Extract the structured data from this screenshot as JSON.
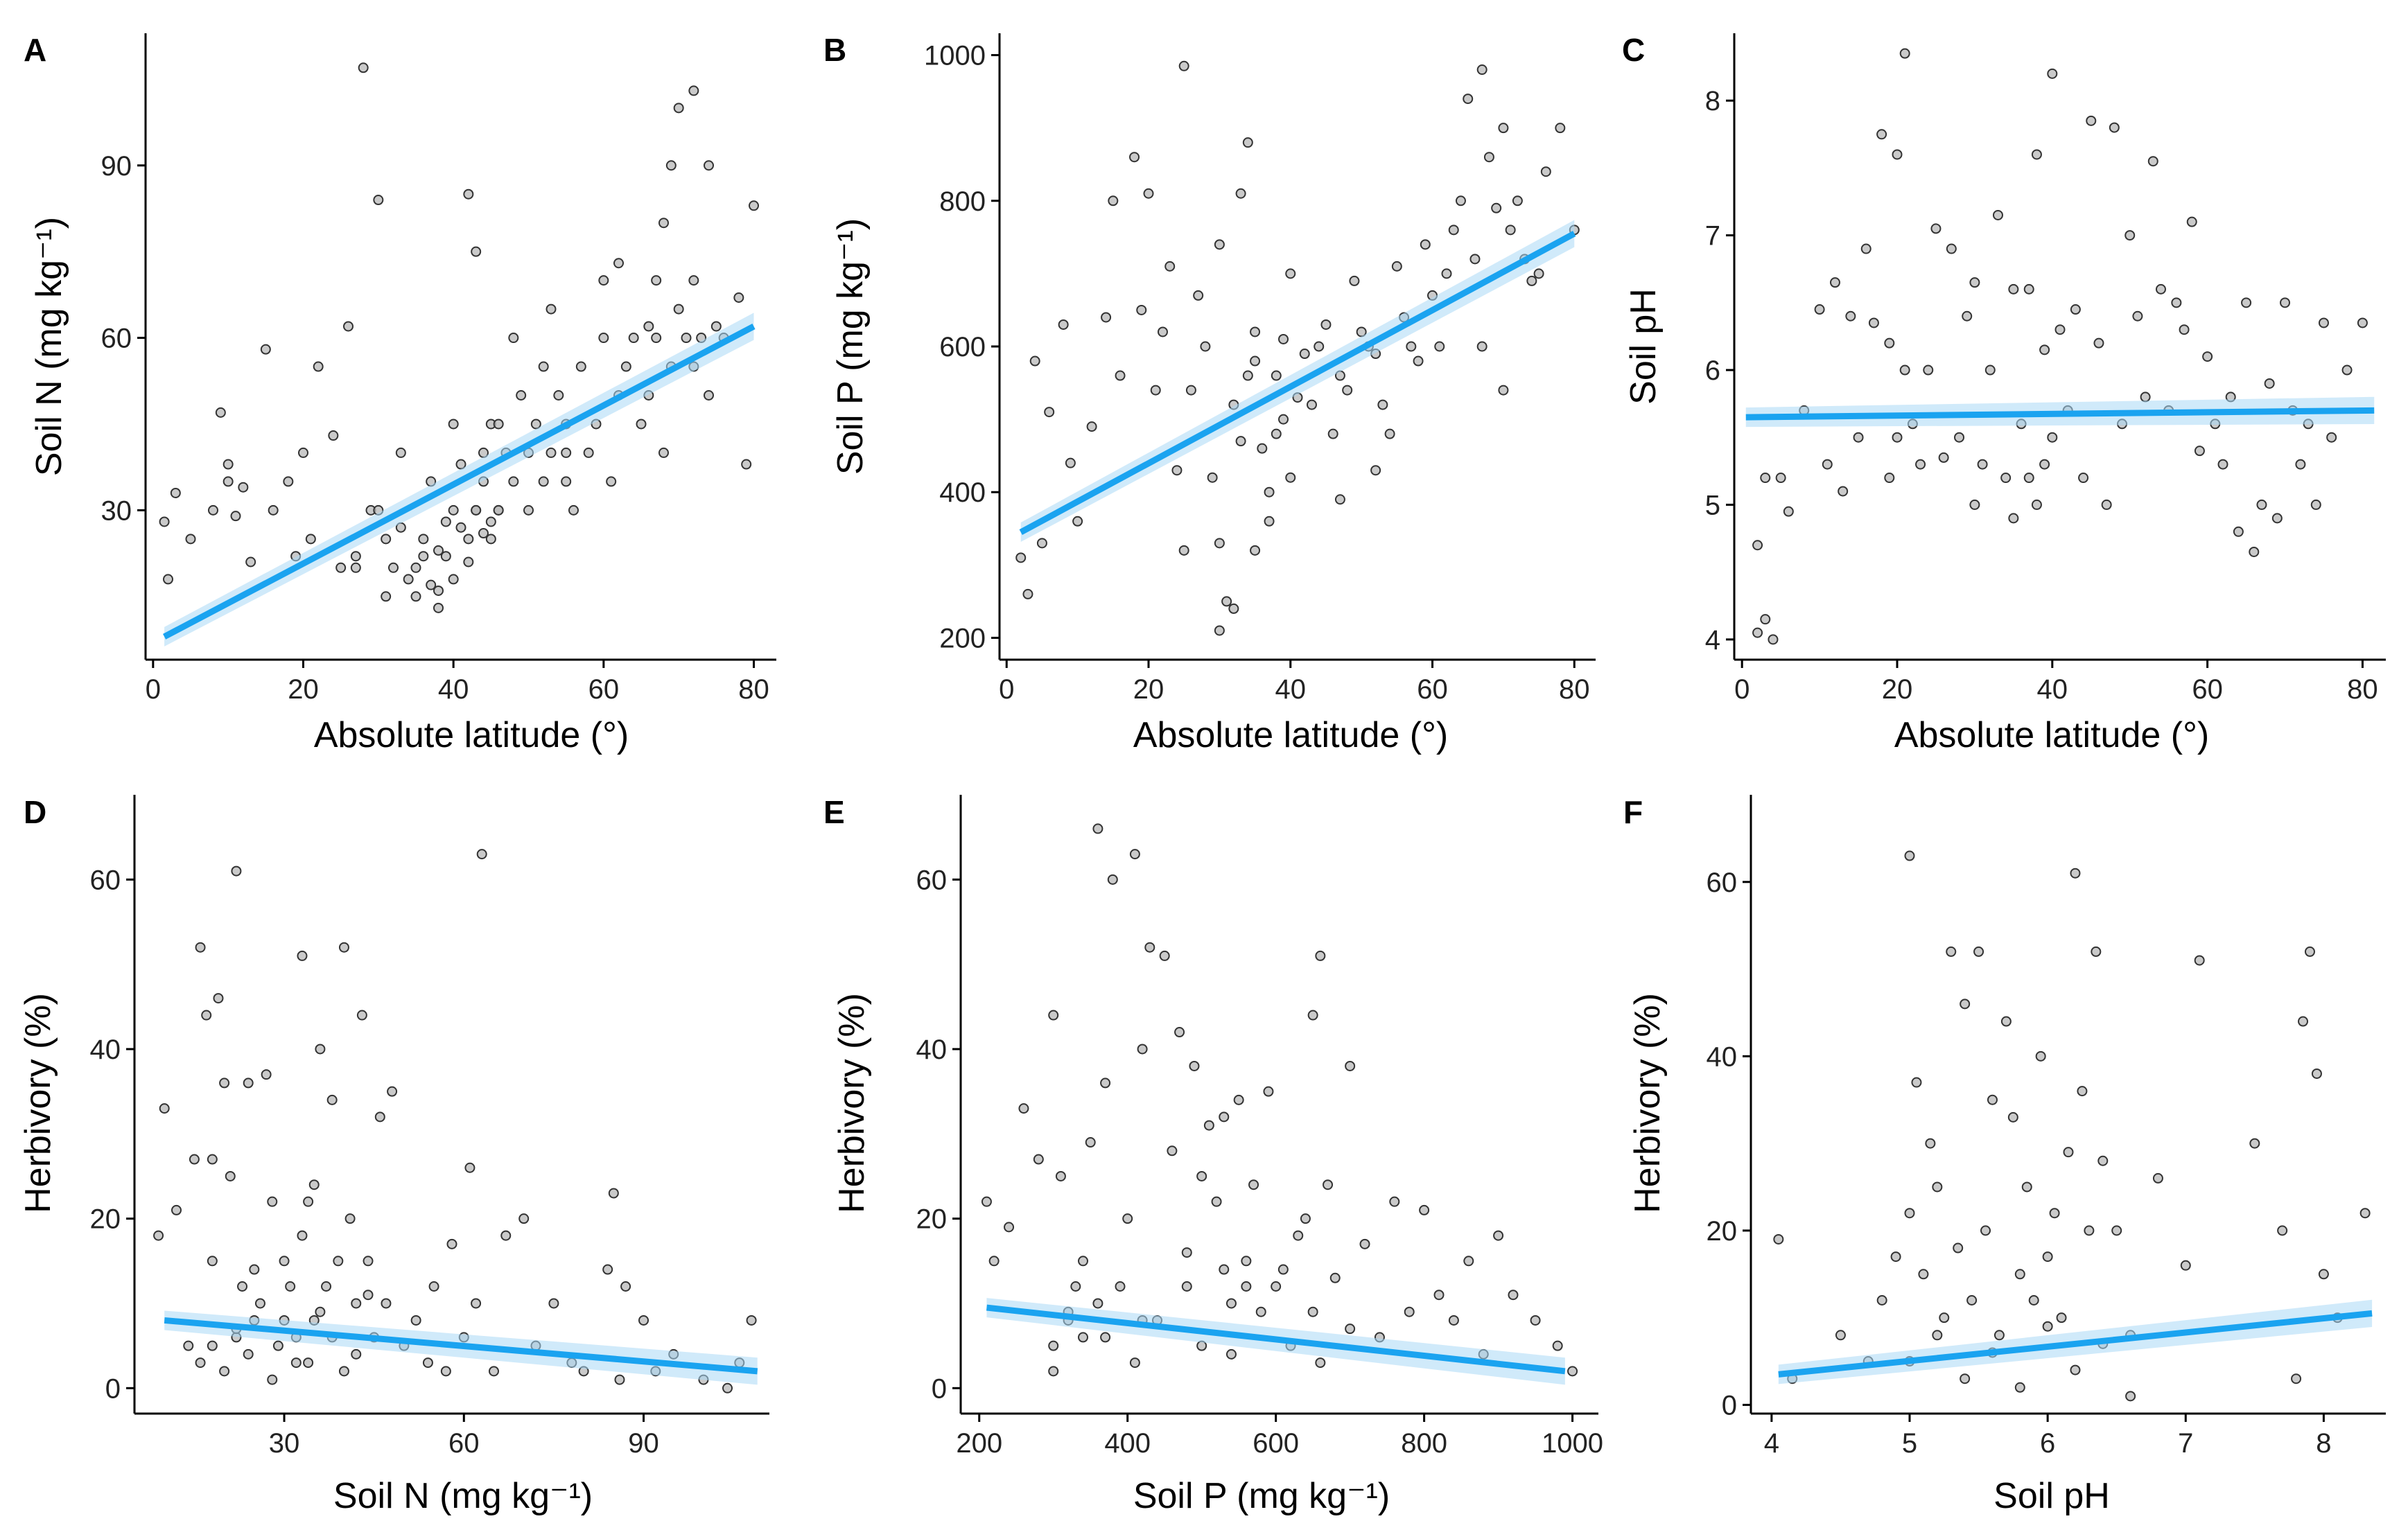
{
  "figure": {
    "panels": [
      {
        "letter": "A",
        "xlabel": "Absolute latitude (°)",
        "ylabel": "Soil N (mg kg⁻¹)"
      },
      {
        "letter": "B",
        "xlabel": "Absolute latitude (°)",
        "ylabel": "Soil P (mg kg⁻¹)"
      },
      {
        "letter": "C",
        "xlabel": "Absolute latitude (°)",
        "ylabel": "Soil pH"
      },
      {
        "letter": "D",
        "xlabel": "Soil N (mg kg⁻¹)",
        "ylabel": "Herbivory (%)"
      },
      {
        "letter": "E",
        "xlabel": "Soil P (mg kg⁻¹)",
        "ylabel": "Herbivory (%)"
      },
      {
        "letter": "F",
        "xlabel": "Soil pH",
        "ylabel": "Herbivory (%)"
      }
    ]
  },
  "colors": {
    "fit_line": "#1aa3f0",
    "ci_band": "#a9d8f5",
    "point_fill": "#b8b8b8",
    "point_stroke": "#333333",
    "axis": "#000000"
  },
  "chart_data": [
    {
      "type": "scatter",
      "panel": "A",
      "xlabel": "Absolute latitude (°)",
      "ylabel": "Soil N (mg kg⁻¹)",
      "xlim": [
        -1,
        83
      ],
      "ylim": [
        4,
        113
      ],
      "xticks": [
        0,
        20,
        40,
        60,
        80
      ],
      "yticks": [
        30,
        60,
        90
      ],
      "points_x": [
        1.5,
        2,
        3,
        5,
        8,
        9,
        10,
        10,
        11,
        12,
        13,
        15,
        16,
        18,
        19,
        20,
        21,
        22,
        24,
        25,
        26,
        27,
        28,
        29,
        30,
        30,
        31,
        32,
        33,
        33,
        34,
        35,
        35,
        36,
        36,
        37,
        37,
        38,
        38,
        39,
        39,
        40,
        40,
        41,
        41,
        42,
        42,
        43,
        43,
        44,
        44,
        45,
        45,
        46,
        46,
        47,
        48,
        48,
        49,
        50,
        50,
        51,
        52,
        52,
        53,
        53,
        54,
        55,
        55,
        56,
        57,
        58,
        59,
        60,
        61,
        62,
        62,
        63,
        64,
        65,
        66,
        67,
        67,
        68,
        68,
        69,
        70,
        70,
        71,
        72,
        72,
        73,
        74,
        75,
        76,
        78,
        79,
        80,
        27,
        31,
        43,
        45,
        55,
        60,
        66,
        69,
        72,
        74,
        38,
        40,
        42,
        44,
        46
      ],
      "points_y": [
        28,
        18,
        33,
        25,
        30,
        47,
        35,
        38,
        29,
        34,
        21,
        58,
        30,
        35,
        22,
        40,
        25,
        55,
        43,
        20,
        62,
        22,
        107,
        30,
        30,
        84,
        15,
        20,
        27,
        40,
        18,
        15,
        20,
        25,
        22,
        17,
        35,
        13,
        23,
        22,
        28,
        30,
        45,
        27,
        38,
        85,
        25,
        75,
        30,
        40,
        35,
        45,
        25,
        30,
        45,
        40,
        35,
        60,
        50,
        40,
        30,
        45,
        55,
        35,
        40,
        65,
        50,
        40,
        45,
        30,
        55,
        40,
        45,
        60,
        35,
        73,
        50,
        55,
        60,
        45,
        50,
        60,
        70,
        40,
        80,
        55,
        65,
        100,
        60,
        70,
        55,
        60,
        50,
        62,
        60,
        67,
        38,
        83,
        20,
        25,
        30,
        28,
        35,
        70,
        62,
        90,
        103,
        90,
        16,
        18,
        21,
        26,
        30
      ],
      "fit": {
        "x": [
          1.5,
          80
        ],
        "y": [
          8,
          62
        ]
      }
    },
    {
      "type": "scatter",
      "panel": "B",
      "xlabel": "Absolute latitude (°)",
      "ylabel": "Soil P (mg kg⁻¹)",
      "xlim": [
        -1,
        83
      ],
      "ylim": [
        170,
        1030
      ],
      "xticks": [
        0,
        20,
        40,
        60,
        80
      ],
      "yticks": [
        200,
        400,
        600,
        800,
        1000
      ],
      "points_x": [
        2,
        3,
        4,
        5,
        6,
        8,
        9,
        10,
        12,
        14,
        15,
        16,
        18,
        19,
        20,
        21,
        22,
        23,
        24,
        25,
        26,
        27,
        28,
        29,
        30,
        30,
        31,
        32,
        33,
        33,
        34,
        35,
        35,
        36,
        37,
        37,
        38,
        38,
        39,
        39,
        40,
        40,
        41,
        42,
        43,
        44,
        45,
        46,
        47,
        48,
        49,
        50,
        51,
        52,
        53,
        54,
        55,
        56,
        57,
        58,
        59,
        60,
        61,
        62,
        63,
        64,
        65,
        66,
        67,
        68,
        69,
        70,
        71,
        72,
        73,
        74,
        75,
        76,
        78,
        80,
        25,
        35,
        47,
        52,
        67,
        70,
        30,
        32,
        34
      ],
      "points_y": [
        310,
        260,
        580,
        330,
        510,
        630,
        440,
        360,
        490,
        640,
        800,
        560,
        860,
        650,
        810,
        540,
        620,
        710,
        430,
        985,
        540,
        670,
        600,
        420,
        740,
        330,
        250,
        520,
        810,
        470,
        880,
        620,
        320,
        460,
        400,
        360,
        560,
        480,
        610,
        500,
        420,
        700,
        530,
        590,
        520,
        600,
        630,
        480,
        560,
        540,
        690,
        620,
        600,
        590,
        520,
        480,
        710,
        640,
        600,
        580,
        740,
        670,
        600,
        700,
        760,
        800,
        940,
        720,
        980,
        860,
        790,
        900,
        760,
        800,
        720,
        690,
        700,
        840,
        900,
        760,
        320,
        580,
        390,
        430,
        600,
        540,
        210,
        240,
        560
      ],
      "fit": {
        "x": [
          2,
          80
        ],
        "y": [
          345,
          755
        ]
      }
    },
    {
      "type": "scatter",
      "panel": "C",
      "xlabel": "Absolute latitude (°)",
      "ylabel": "Soil pH",
      "xlim": [
        -1,
        83
      ],
      "ylim": [
        3.85,
        8.5
      ],
      "xticks": [
        0,
        20,
        40,
        60,
        80
      ],
      "yticks": [
        4,
        5,
        6,
        7,
        8
      ],
      "points_x": [
        2,
        2,
        3,
        3,
        4,
        5,
        6,
        8,
        10,
        11,
        12,
        13,
        14,
        15,
        16,
        17,
        18,
        19,
        19,
        20,
        20,
        21,
        21,
        22,
        23,
        24,
        25,
        26,
        27,
        28,
        29,
        30,
        30,
        31,
        32,
        33,
        34,
        35,
        35,
        36,
        37,
        37,
        38,
        38,
        39,
        39,
        40,
        40,
        41,
        42,
        43,
        44,
        45,
        46,
        47,
        48,
        49,
        50,
        51,
        52,
        53,
        54,
        55,
        56,
        57,
        58,
        59,
        60,
        61,
        62,
        63,
        64,
        65,
        66,
        67,
        68,
        69,
        70,
        71,
        72,
        73,
        74,
        75,
        76,
        78,
        80
      ],
      "points_y": [
        4.7,
        4.05,
        5.2,
        4.15,
        4.0,
        5.2,
        4.95,
        5.7,
        6.45,
        5.3,
        6.65,
        5.1,
        6.4,
        5.5,
        6.9,
        6.35,
        7.75,
        6.2,
        5.2,
        7.6,
        5.5,
        8.35,
        6.0,
        5.6,
        5.3,
        6.0,
        7.05,
        5.35,
        6.9,
        5.5,
        6.4,
        6.65,
        5.0,
        5.3,
        6.0,
        7.15,
        5.2,
        6.6,
        4.9,
        5.6,
        5.2,
        6.6,
        5.0,
        7.6,
        5.3,
        6.15,
        8.2,
        5.5,
        6.3,
        5.7,
        6.45,
        5.2,
        7.85,
        6.2,
        5.0,
        7.8,
        5.6,
        7.0,
        6.4,
        5.8,
        7.55,
        6.6,
        5.7,
        6.5,
        6.3,
        7.1,
        5.4,
        6.1,
        5.6,
        5.3,
        5.8,
        4.8,
        6.5,
        4.65,
        5.0,
        5.9,
        4.9,
        6.5,
        5.7,
        5.3,
        5.6,
        5.0,
        6.35,
        5.5,
        6.0,
        6.35
      ],
      "fit": {
        "x": [
          0.5,
          81.5
        ],
        "y": [
          5.65,
          5.7
        ]
      }
    },
    {
      "type": "scatter",
      "panel": "D",
      "xlabel": "Soil N (mg kg⁻¹)",
      "ylabel": "Herbivory (%)",
      "xlim": [
        5,
        111
      ],
      "ylim": [
        -3,
        70
      ],
      "xticks": [
        30,
        60,
        90
      ],
      "yticks": [
        0,
        20,
        40,
        60
      ],
      "points_x": [
        9,
        10,
        12,
        14,
        15,
        16,
        17,
        18,
        18,
        19,
        20,
        21,
        22,
        22,
        23,
        24,
        25,
        25,
        26,
        27,
        28,
        29,
        30,
        30,
        31,
        32,
        33,
        33,
        34,
        35,
        35,
        36,
        37,
        38,
        38,
        39,
        40,
        41,
        42,
        43,
        44,
        45,
        46,
        47,
        48,
        50,
        52,
        54,
        55,
        57,
        58,
        60,
        61,
        62,
        63,
        65,
        67,
        70,
        72,
        75,
        78,
        80,
        84,
        85,
        86,
        87,
        90,
        92,
        95,
        100,
        104,
        106,
        108,
        16,
        18,
        20,
        22,
        24,
        28,
        32,
        34,
        36,
        40,
        42,
        44
      ],
      "points_y": [
        18,
        33,
        21,
        5,
        27,
        52,
        44,
        15,
        27,
        46,
        36,
        25,
        61,
        6,
        12,
        36,
        8,
        14,
        10,
        37,
        22,
        5,
        15,
        8,
        12,
        3,
        51,
        18,
        22,
        8,
        24,
        40,
        12,
        34,
        6,
        15,
        52,
        20,
        10,
        44,
        15,
        6,
        32,
        10,
        35,
        5,
        8,
        3,
        12,
        2,
        17,
        6,
        26,
        10,
        63,
        2,
        18,
        20,
        5,
        10,
        3,
        2,
        14,
        23,
        1,
        12,
        8,
        2,
        4,
        1,
        0,
        3,
        8,
        3,
        5,
        2,
        7,
        4,
        1,
        6,
        3,
        9,
        2,
        4,
        11
      ],
      "fit": {
        "x": [
          10,
          109
        ],
        "y": [
          8,
          2
        ]
      }
    },
    {
      "type": "scatter",
      "panel": "E",
      "xlabel": "Soil P (mg kg⁻¹)",
      "ylabel": "Herbivory (%)",
      "xlim": [
        175,
        1035
      ],
      "ylim": [
        -3,
        70
      ],
      "xticks": [
        200,
        400,
        600,
        800,
        1000
      ],
      "yticks": [
        0,
        20,
        40,
        60
      ],
      "points_x": [
        210,
        220,
        240,
        260,
        280,
        300,
        300,
        310,
        320,
        330,
        340,
        350,
        360,
        370,
        380,
        390,
        400,
        410,
        420,
        430,
        440,
        450,
        460,
        470,
        480,
        490,
        500,
        510,
        520,
        530,
        540,
        550,
        560,
        570,
        580,
        590,
        600,
        610,
        620,
        630,
        640,
        650,
        660,
        670,
        680,
        700,
        720,
        740,
        760,
        780,
        800,
        820,
        840,
        860,
        880,
        900,
        920,
        950,
        980,
        1000,
        360,
        370,
        410,
        420,
        480,
        500,
        530,
        650,
        660,
        700,
        300,
        320,
        340,
        540,
        560
      ],
      "points_y": [
        22,
        15,
        19,
        33,
        27,
        44,
        5,
        25,
        8,
        12,
        15,
        29,
        66,
        36,
        60,
        12,
        20,
        63,
        40,
        52,
        8,
        51,
        28,
        42,
        16,
        38,
        25,
        31,
        22,
        32,
        10,
        34,
        15,
        24,
        9,
        35,
        12,
        14,
        5,
        18,
        20,
        44,
        51,
        24,
        13,
        38,
        17,
        6,
        22,
        9,
        21,
        11,
        8,
        15,
        4,
        18,
        11,
        8,
        5,
        2,
        10,
        6,
        3,
        8,
        12,
        5,
        14,
        9,
        3,
        7,
        2,
        9,
        6,
        4,
        12
      ],
      "fit": {
        "x": [
          210,
          990
        ],
        "y": [
          9.5,
          2
        ]
      }
    },
    {
      "type": "scatter",
      "panel": "F",
      "xlabel": "Soil pH",
      "ylabel": "Herbivory (%)",
      "xlim": [
        3.85,
        8.45
      ],
      "ylim": [
        -1,
        70
      ],
      "xticks": [
        4,
        5,
        6,
        7,
        8
      ],
      "yticks": [
        0,
        20,
        40,
        60
      ],
      "points_x": [
        4.05,
        4.15,
        4.5,
        4.7,
        4.8,
        4.9,
        5.0,
        5.0,
        5.05,
        5.1,
        5.15,
        5.2,
        5.25,
        5.3,
        5.35,
        5.4,
        5.45,
        5.5,
        5.55,
        5.6,
        5.65,
        5.7,
        5.75,
        5.8,
        5.85,
        5.9,
        5.95,
        6.0,
        6.05,
        6.1,
        6.15,
        6.2,
        6.25,
        6.3,
        6.35,
        6.4,
        6.5,
        6.6,
        6.8,
        7.0,
        7.1,
        7.5,
        7.7,
        7.8,
        7.85,
        7.9,
        7.95,
        8.0,
        8.1,
        8.3,
        5.0,
        5.2,
        5.4,
        5.6,
        5.8,
        6.0,
        6.2,
        6.4,
        6.6
      ],
      "points_y": [
        19,
        3,
        8,
        5,
        12,
        17,
        63,
        22,
        37,
        15,
        30,
        25,
        10,
        52,
        18,
        46,
        12,
        52,
        20,
        35,
        8,
        44,
        33,
        15,
        25,
        12,
        40,
        17,
        22,
        10,
        29,
        61,
        36,
        20,
        52,
        28,
        20,
        8,
        26,
        16,
        51,
        30,
        20,
        3,
        44,
        52,
        38,
        15,
        10,
        22,
        5,
        8,
        3,
        6,
        2,
        9,
        4,
        7,
        1
      ],
      "fit": {
        "x": [
          4.05,
          8.35
        ],
        "y": [
          3.5,
          10.5
        ]
      }
    }
  ]
}
